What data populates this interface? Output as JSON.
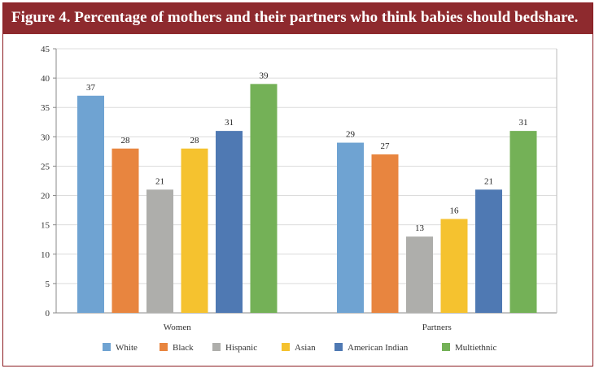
{
  "chart_data": {
    "type": "bar",
    "title": "Figure 4. Percentage of mothers and their partners who think babies should bedshare.",
    "categories": [
      "Women",
      "Partners"
    ],
    "series": [
      {
        "name": "White",
        "color": "#6fa3d2",
        "values": [
          37,
          29
        ]
      },
      {
        "name": "Black",
        "color": "#e8853f",
        "values": [
          28,
          27
        ]
      },
      {
        "name": "Hispanic",
        "color": "#aeaeab",
        "values": [
          21,
          13
        ]
      },
      {
        "name": "Asian",
        "color": "#f5c22f",
        "values": [
          28,
          16
        ]
      },
      {
        "name": "American Indian",
        "color": "#4f79b3",
        "values": [
          31,
          21
        ]
      },
      {
        "name": "Multiethnic",
        "color": "#74b157",
        "values": [
          39,
          31
        ]
      }
    ],
    "ylim": [
      0,
      45
    ],
    "yticks": [
      0,
      5,
      10,
      15,
      20,
      25,
      30,
      35,
      40,
      45
    ],
    "xlabel": "",
    "ylabel": "",
    "grid": true,
    "legend": "bottom"
  }
}
